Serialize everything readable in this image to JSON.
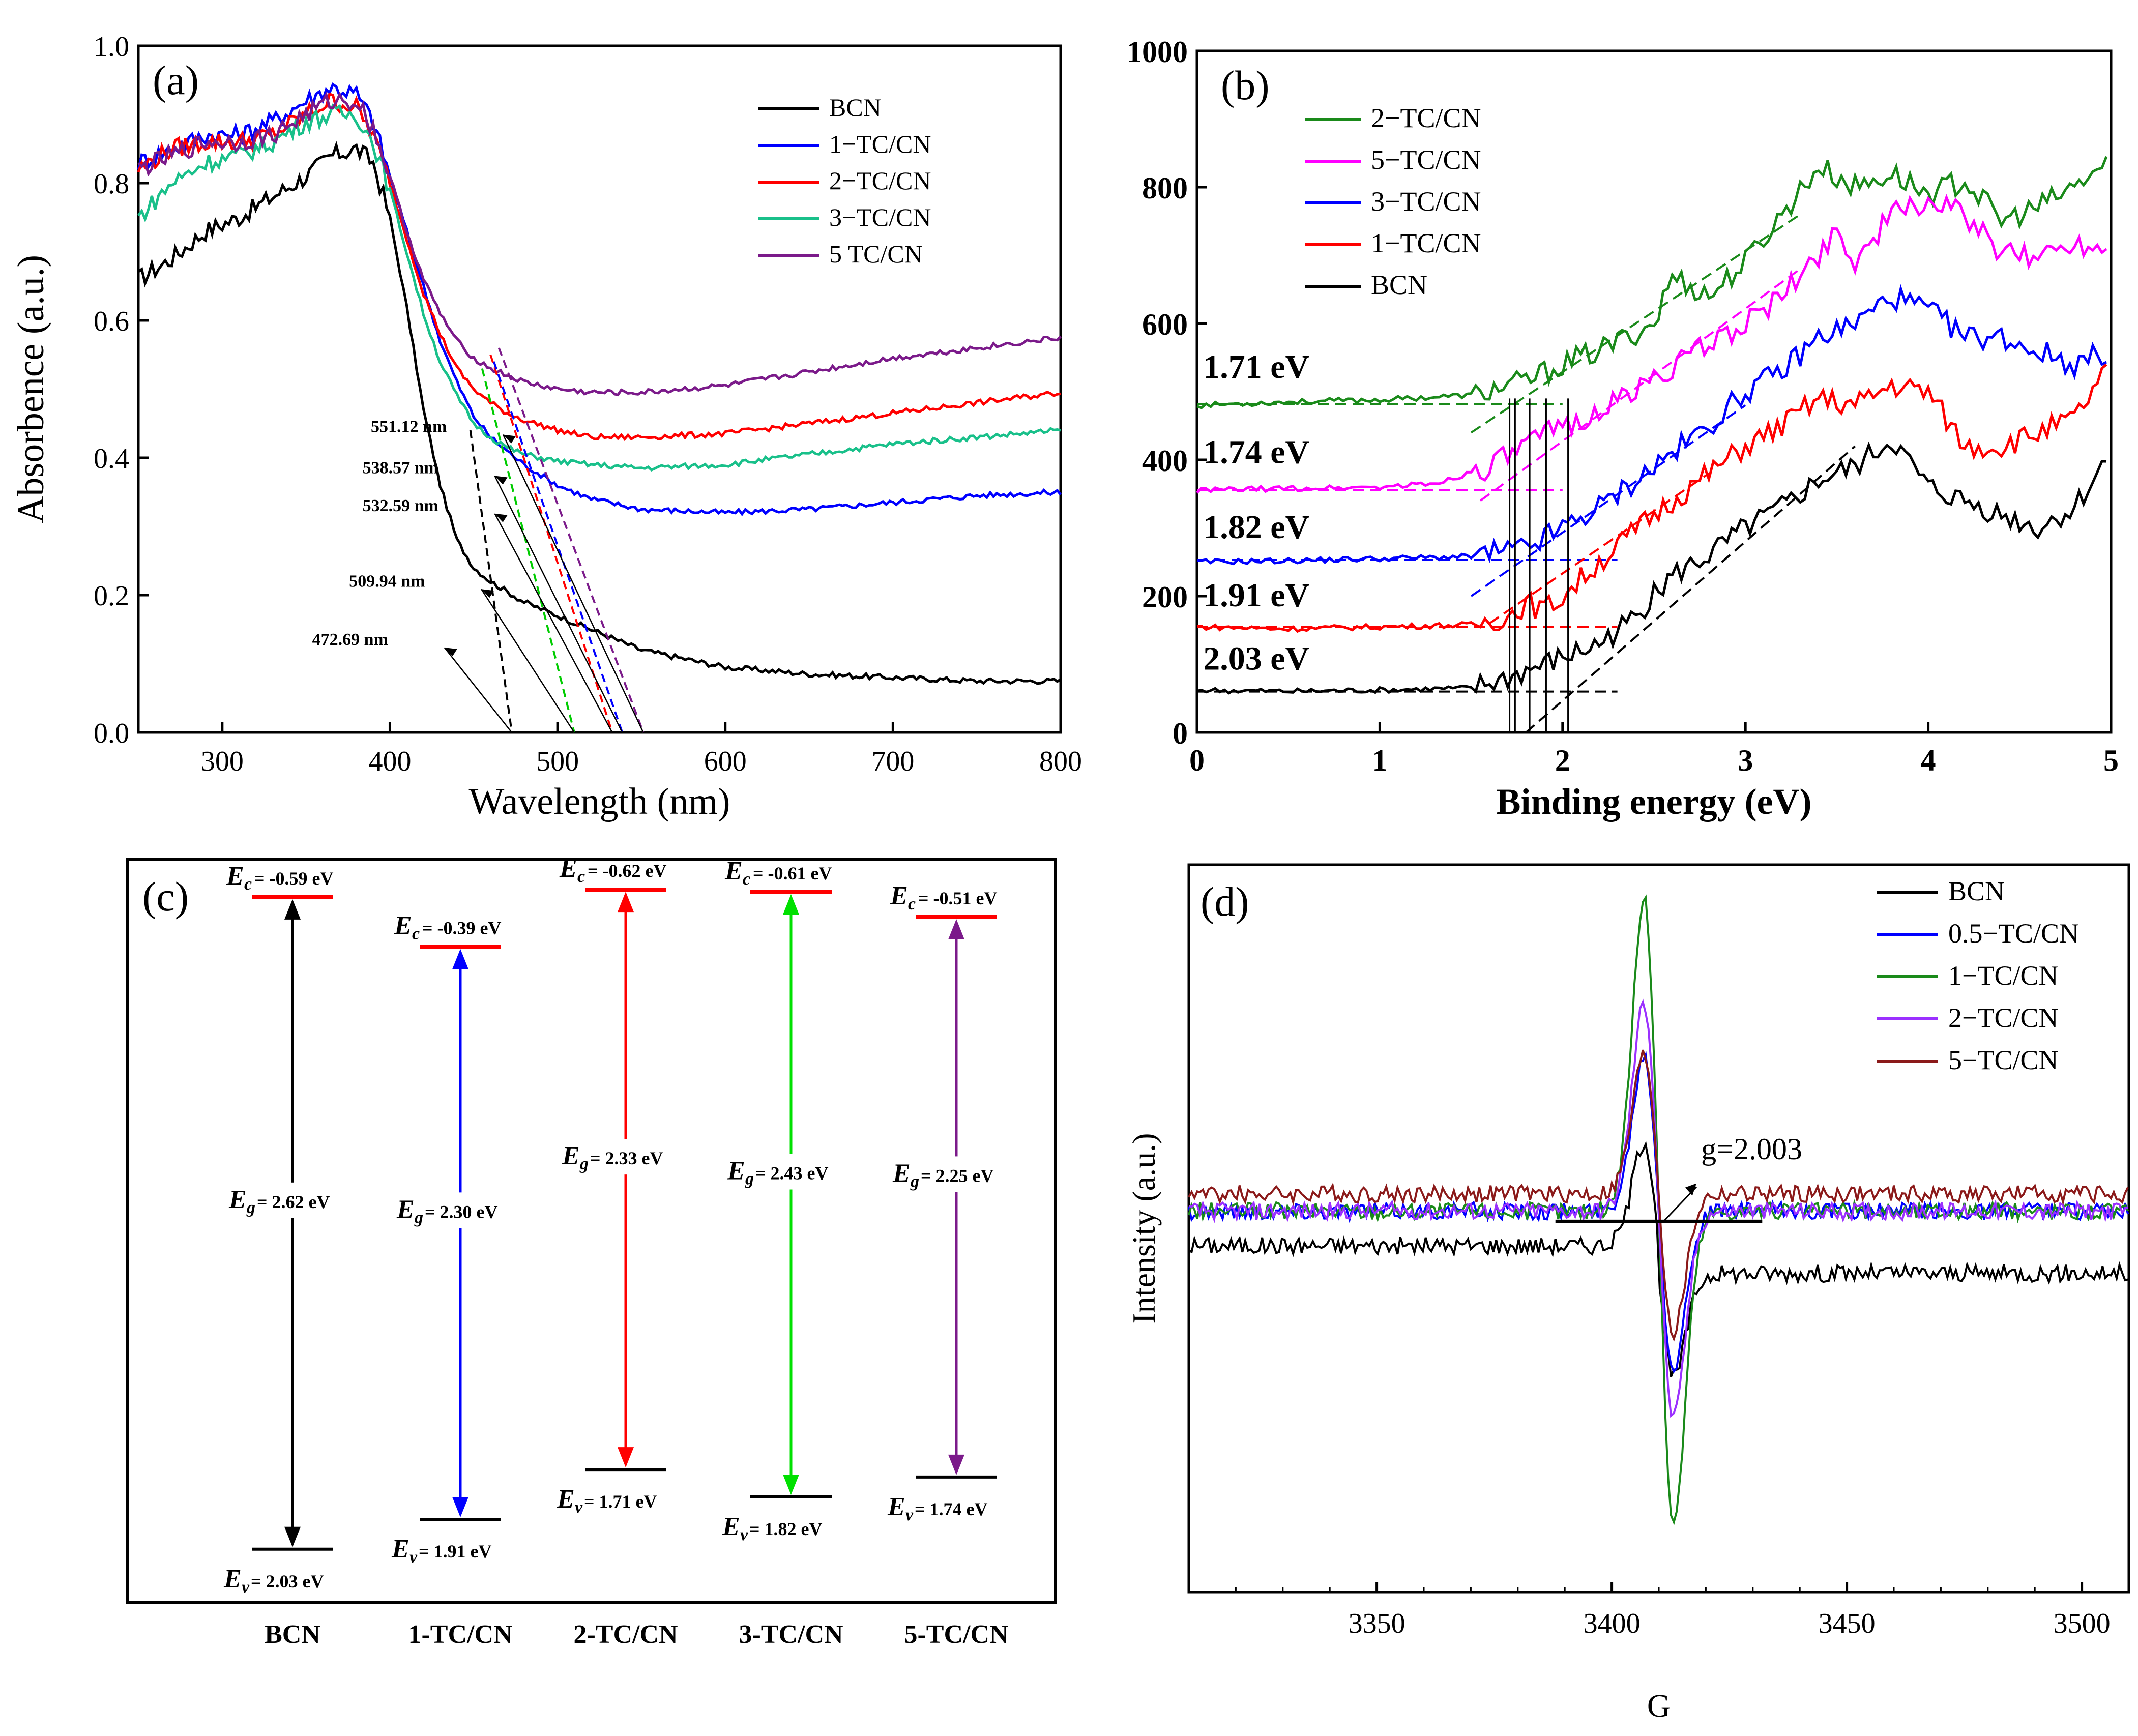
{
  "chart_data": [
    {
      "panel": "(a)",
      "type": "line",
      "xlabel": "Wavelength (nm)",
      "ylabel": "Absorbence (a.u.)",
      "xlim": [
        250,
        800
      ],
      "ylim": [
        0.0,
        1.0
      ],
      "xticks": [
        "300",
        "400",
        "500",
        "600",
        "700",
        "800"
      ],
      "yticks": [
        "0.0",
        "0.2",
        "0.4",
        "0.6",
        "0.8",
        "1.0"
      ],
      "legend": [
        "BCN",
        "1−TC/CN",
        "2−TC/CN",
        "3−TC/CN",
        "5  TC/CN"
      ],
      "series": [
        {
          "name": "BCN",
          "color": "#000000",
          "x": [
            250,
            270,
            290,
            310,
            330,
            350,
            365,
            380,
            390,
            400,
            410,
            420,
            430,
            440,
            450,
            460,
            480,
            500,
            520,
            550,
            600,
            650,
            700,
            750,
            800
          ],
          "y": [
            0.66,
            0.69,
            0.73,
            0.75,
            0.78,
            0.81,
            0.84,
            0.85,
            0.83,
            0.75,
            0.62,
            0.47,
            0.36,
            0.28,
            0.24,
            0.22,
            0.19,
            0.17,
            0.15,
            0.12,
            0.095,
            0.085,
            0.08,
            0.075,
            0.075
          ]
        },
        {
          "name": "1−TC/CN",
          "color": "#0000ff",
          "x": [
            250,
            270,
            290,
            310,
            330,
            350,
            365,
            380,
            390,
            400,
            410,
            420,
            430,
            440,
            450,
            460,
            470,
            480,
            500,
            520,
            550,
            600,
            650,
            700,
            750,
            800
          ],
          "y": [
            0.83,
            0.85,
            0.87,
            0.87,
            0.89,
            0.92,
            0.94,
            0.93,
            0.89,
            0.81,
            0.73,
            0.65,
            0.57,
            0.51,
            0.46,
            0.43,
            0.41,
            0.39,
            0.36,
            0.34,
            0.325,
            0.32,
            0.325,
            0.335,
            0.345,
            0.35
          ]
        },
        {
          "name": "2−TC/CN",
          "color": "#ff0000",
          "x": [
            250,
            270,
            290,
            310,
            330,
            350,
            365,
            380,
            390,
            400,
            410,
            420,
            430,
            440,
            450,
            460,
            470,
            480,
            500,
            520,
            550,
            600,
            650,
            700,
            750,
            800
          ],
          "y": [
            0.82,
            0.85,
            0.86,
            0.86,
            0.87,
            0.9,
            0.92,
            0.91,
            0.87,
            0.8,
            0.72,
            0.64,
            0.58,
            0.53,
            0.5,
            0.48,
            0.465,
            0.455,
            0.44,
            0.43,
            0.43,
            0.435,
            0.45,
            0.465,
            0.48,
            0.495
          ]
        },
        {
          "name": "3−TC/CN",
          "color": "#19c08a",
          "x": [
            250,
            270,
            290,
            310,
            330,
            350,
            365,
            380,
            390,
            400,
            410,
            420,
            430,
            440,
            450,
            460,
            470,
            480,
            500,
            520,
            550,
            600,
            650,
            700,
            750,
            800
          ],
          "y": [
            0.75,
            0.8,
            0.83,
            0.84,
            0.86,
            0.89,
            0.9,
            0.9,
            0.86,
            0.79,
            0.7,
            0.61,
            0.54,
            0.49,
            0.45,
            0.43,
            0.415,
            0.405,
            0.395,
            0.39,
            0.385,
            0.39,
            0.405,
            0.42,
            0.43,
            0.44
          ]
        },
        {
          "name": "5  TC/CN",
          "color": "#7b1a8a",
          "x": [
            250,
            270,
            290,
            310,
            330,
            350,
            365,
            380,
            390,
            400,
            410,
            420,
            430,
            440,
            450,
            460,
            470,
            480,
            500,
            520,
            550,
            600,
            650,
            700,
            750,
            800
          ],
          "y": [
            0.82,
            0.84,
            0.86,
            0.86,
            0.87,
            0.9,
            0.92,
            0.92,
            0.88,
            0.81,
            0.73,
            0.66,
            0.61,
            0.57,
            0.545,
            0.53,
            0.52,
            0.51,
            0.5,
            0.495,
            0.495,
            0.505,
            0.525,
            0.545,
            0.56,
            0.575
          ]
        }
      ],
      "tangent_lines": [
        {
          "color": "#000000",
          "from": [
            448,
            0.44
          ],
          "to": [
            472.69,
            0.0
          ]
        },
        {
          "color": "#00cc00",
          "from": [
            455,
            0.53
          ],
          "to": [
            509.94,
            0.0
          ]
        },
        {
          "color": "#ff0000",
          "from": [
            460,
            0.55
          ],
          "to": [
            532.59,
            0.0
          ]
        },
        {
          "color": "#0000ff",
          "from": [
            462,
            0.54
          ],
          "to": [
            538.57,
            0.0
          ]
        },
        {
          "color": "#7b1a8a",
          "from": [
            465,
            0.56
          ],
          "to": [
            551.12,
            0.0
          ]
        }
      ],
      "annotations": [
        {
          "text": "551.12 nm",
          "color": "#7b1a8a",
          "at": [
            510,
            0.43
          ],
          "target": [
            551.12,
            0.0
          ]
        },
        {
          "text": "538.57 nm",
          "color": "#0000ff",
          "at": [
            505,
            0.37
          ],
          "target": [
            538.57,
            0.0
          ]
        },
        {
          "text": "532.59 nm",
          "color": "#ff0000",
          "at": [
            505,
            0.315
          ],
          "target": [
            532.59,
            0.0
          ]
        },
        {
          "text": "509.94 nm",
          "color": "#00cc00",
          "at": [
            497,
            0.205
          ],
          "target": [
            509.94,
            0.0
          ]
        },
        {
          "text": "472.69 nm",
          "color": "#000000",
          "at": [
            475,
            0.12
          ],
          "target": [
            472.69,
            0.0
          ]
        }
      ]
    },
    {
      "panel": "(b)",
      "type": "line",
      "xlabel": "Binding energy (eV)",
      "ylabel": "",
      "xlim": [
        0,
        5
      ],
      "ylim": [
        0,
        1000
      ],
      "xticks": [
        "0",
        "1",
        "2",
        "3",
        "4",
        "5"
      ],
      "yticks": [
        "0",
        "200",
        "400",
        "600",
        "800",
        "1000"
      ],
      "legend": [
        "2−TC/CN",
        "5−TC/CN",
        "3−TC/CN",
        "1−TC/CN",
        "BCN"
      ],
      "series": [
        {
          "name": "2−TC/CN",
          "color": "#1a8a1a",
          "x": [
            0,
            0.5,
            1,
            1.5,
            1.8,
            2.0,
            2.2,
            2.5,
            2.6,
            2.8,
            3.0,
            3.2,
            3.4,
            3.6,
            3.8,
            4.0,
            4.2,
            4.4,
            4.6,
            4.8,
            5.0
          ],
          "y": [
            480,
            485,
            488,
            495,
            515,
            540,
            560,
            600,
            670,
            640,
            690,
            760,
            830,
            800,
            820,
            790,
            810,
            750,
            770,
            800,
            840
          ]
        },
        {
          "name": "5−TC/CN",
          "color": "#ff00ff",
          "x": [
            0,
            0.5,
            1,
            1.3,
            1.6,
            1.8,
            2.0,
            2.2,
            2.5,
            2.8,
            3.0,
            3.2,
            3.4,
            3.5,
            3.6,
            3.8,
            4.0,
            4.2,
            4.4,
            4.6,
            4.8,
            5.0
          ],
          "y": [
            355,
            358,
            360,
            365,
            390,
            420,
            450,
            470,
            520,
            570,
            600,
            640,
            700,
            740,
            690,
            760,
            780,
            760,
            700,
            700,
            720,
            710
          ]
        },
        {
          "name": "3−TC/CN",
          "color": "#0000ff",
          "x": [
            0,
            0.5,
            1,
            1.5,
            1.8,
            2.0,
            2.2,
            2.5,
            2.8,
            3.0,
            3.2,
            3.4,
            3.6,
            3.8,
            4.0,
            4.2,
            4.4,
            4.6,
            4.8,
            5.0
          ],
          "y": [
            250,
            252,
            255,
            258,
            270,
            300,
            330,
            390,
            450,
            500,
            530,
            580,
            600,
            640,
            620,
            580,
            580,
            560,
            540,
            560
          ]
        },
        {
          "name": "1−TC/CN",
          "color": "#ff0000",
          "x": [
            0,
            0.5,
            1,
            1.5,
            1.7,
            1.8,
            1.9,
            2.0,
            2.2,
            2.5,
            2.8,
            3.0,
            3.2,
            3.4,
            3.6,
            3.8,
            4.0,
            4.2,
            4.4,
            4.6,
            4.8,
            5.0
          ],
          "y": [
            155,
            152,
            155,
            158,
            170,
            190,
            180,
            200,
            250,
            320,
            380,
            420,
            450,
            490,
            480,
            510,
            500,
            420,
            420,
            440,
            460,
            540
          ]
        },
        {
          "name": "BCN",
          "color": "#000000",
          "x": [
            0,
            0.5,
            1,
            1.5,
            1.7,
            1.9,
            2.0,
            2.2,
            2.4,
            2.6,
            2.8,
            3.0,
            3.2,
            3.4,
            3.6,
            3.8,
            4.0,
            4.2,
            4.4,
            4.6,
            4.8,
            5.0
          ],
          "y": [
            62,
            60,
            62,
            65,
            80,
            100,
            110,
            130,
            170,
            230,
            260,
            300,
            330,
            370,
            390,
            430,
            360,
            340,
            320,
            300,
            330,
            410
          ]
        }
      ],
      "dashed_lines": [
        {
          "color": "#1a8a1a",
          "from": [
            0,
            482
          ],
          "to": [
            2.0,
            482
          ]
        },
        {
          "color": "#1a8a1a",
          "from": [
            1.5,
            440
          ],
          "to": [
            3.3,
            760
          ]
        },
        {
          "color": "#ff00ff",
          "from": [
            0,
            356
          ],
          "to": [
            2.0,
            356
          ]
        },
        {
          "color": "#ff00ff",
          "from": [
            1.55,
            340
          ],
          "to": [
            3.3,
            680
          ]
        },
        {
          "color": "#0000ff",
          "from": [
            0,
            253
          ],
          "to": [
            2.3,
            253
          ]
        },
        {
          "color": "#0000ff",
          "from": [
            1.5,
            200
          ],
          "to": [
            3.0,
            480
          ]
        },
        {
          "color": "#ff0000",
          "from": [
            0,
            155
          ],
          "to": [
            2.3,
            155
          ]
        },
        {
          "color": "#ff0000",
          "from": [
            1.6,
            160
          ],
          "to": [
            2.8,
            380
          ]
        },
        {
          "color": "#000000",
          "from": [
            0,
            60
          ],
          "to": [
            2.3,
            60
          ]
        },
        {
          "color": "#000000",
          "from": [
            1.8,
            0
          ],
          "to": [
            3.6,
            420
          ]
        }
      ],
      "vertical_lines": [
        1.71,
        1.74,
        1.82,
        1.91,
        2.03
      ],
      "annotations": [
        {
          "text": "1.71 eV",
          "at": [
            0.02,
            520
          ]
        },
        {
          "text": "1.74 eV",
          "at": [
            0.02,
            395
          ]
        },
        {
          "text": "1.82 eV",
          "at": [
            0.02,
            285
          ]
        },
        {
          "text": "1.91 eV",
          "at": [
            0.02,
            185
          ]
        },
        {
          "text": "2.03 eV",
          "at": [
            0.02,
            92
          ]
        }
      ]
    },
    {
      "panel": "(c)",
      "type": "diagram",
      "ylim": [
        -0.7,
        2.1
      ],
      "categories": [
        "BCN",
        "1-TC/CN",
        "2-TC/CN",
        "3-TC/CN",
        "5-TC/CN"
      ],
      "arrow_colors": [
        "#000000",
        "#0000ff",
        "#ff0000",
        "#00e000",
        "#7b1a8a"
      ],
      "Ec": [
        -0.59,
        -0.39,
        -0.62,
        -0.61,
        -0.51
      ],
      "Ev": [
        2.03,
        1.91,
        1.71,
        1.82,
        1.74
      ],
      "Eg": [
        2.62,
        2.3,
        2.33,
        2.43,
        2.25
      ],
      "Ec_labels": [
        "= -0.59 eV",
        "= -0.39 eV",
        "= -0.62 eV",
        "= -0.61 eV",
        "= -0.51 eV"
      ],
      "Ev_labels": [
        "= 2.03 eV",
        "= 1.91 eV",
        "= 1.71 eV",
        "= 1.82 eV",
        "= 1.74 eV"
      ],
      "Eg_labels": [
        "= 2.62 eV",
        "= 2.30 eV",
        "= 2.33 eV",
        "= 2.43 eV",
        "= 2.25 eV"
      ]
    },
    {
      "panel": "(d)",
      "type": "line",
      "xlabel": "G",
      "ylabel": "Intensity (a.u.)",
      "xlim": [
        3310,
        3510
      ],
      "ylim": [
        -1.0,
        1.0
      ],
      "xticks": [
        "3350",
        "3400",
        "3450",
        "3500"
      ],
      "legend": [
        "BCN",
        "0.5−TC/CN",
        "1−TC/CN",
        "2−TC/CN",
        "5−TC/CN"
      ],
      "series": [
        {
          "name": "BCN",
          "color": "#000000",
          "amp": 0.3,
          "offset": -0.05
        },
        {
          "name": "0.5−TC/CN",
          "color": "#0000ff",
          "amp": 0.45,
          "offset": 0.05
        },
        {
          "name": "1−TC/CN",
          "color": "#1a8a1a",
          "amp": 0.9,
          "offset": 0.05
        },
        {
          "name": "2−TC/CN",
          "color": "#9b30ff",
          "amp": 0.6,
          "offset": 0.05
        },
        {
          "name": "5−TC/CN",
          "color": "#8b1a1a",
          "amp": 0.4,
          "offset": 0.1
        }
      ],
      "annotation": {
        "text": "g=2.003",
        "line": [
          3388,
          3432
        ],
        "at": [
          3416,
          0.2
        ]
      }
    }
  ],
  "labels": {
    "panel_a": "(a)",
    "panel_b": "(b)",
    "panel_c": "(c)",
    "panel_d": "(d)"
  }
}
